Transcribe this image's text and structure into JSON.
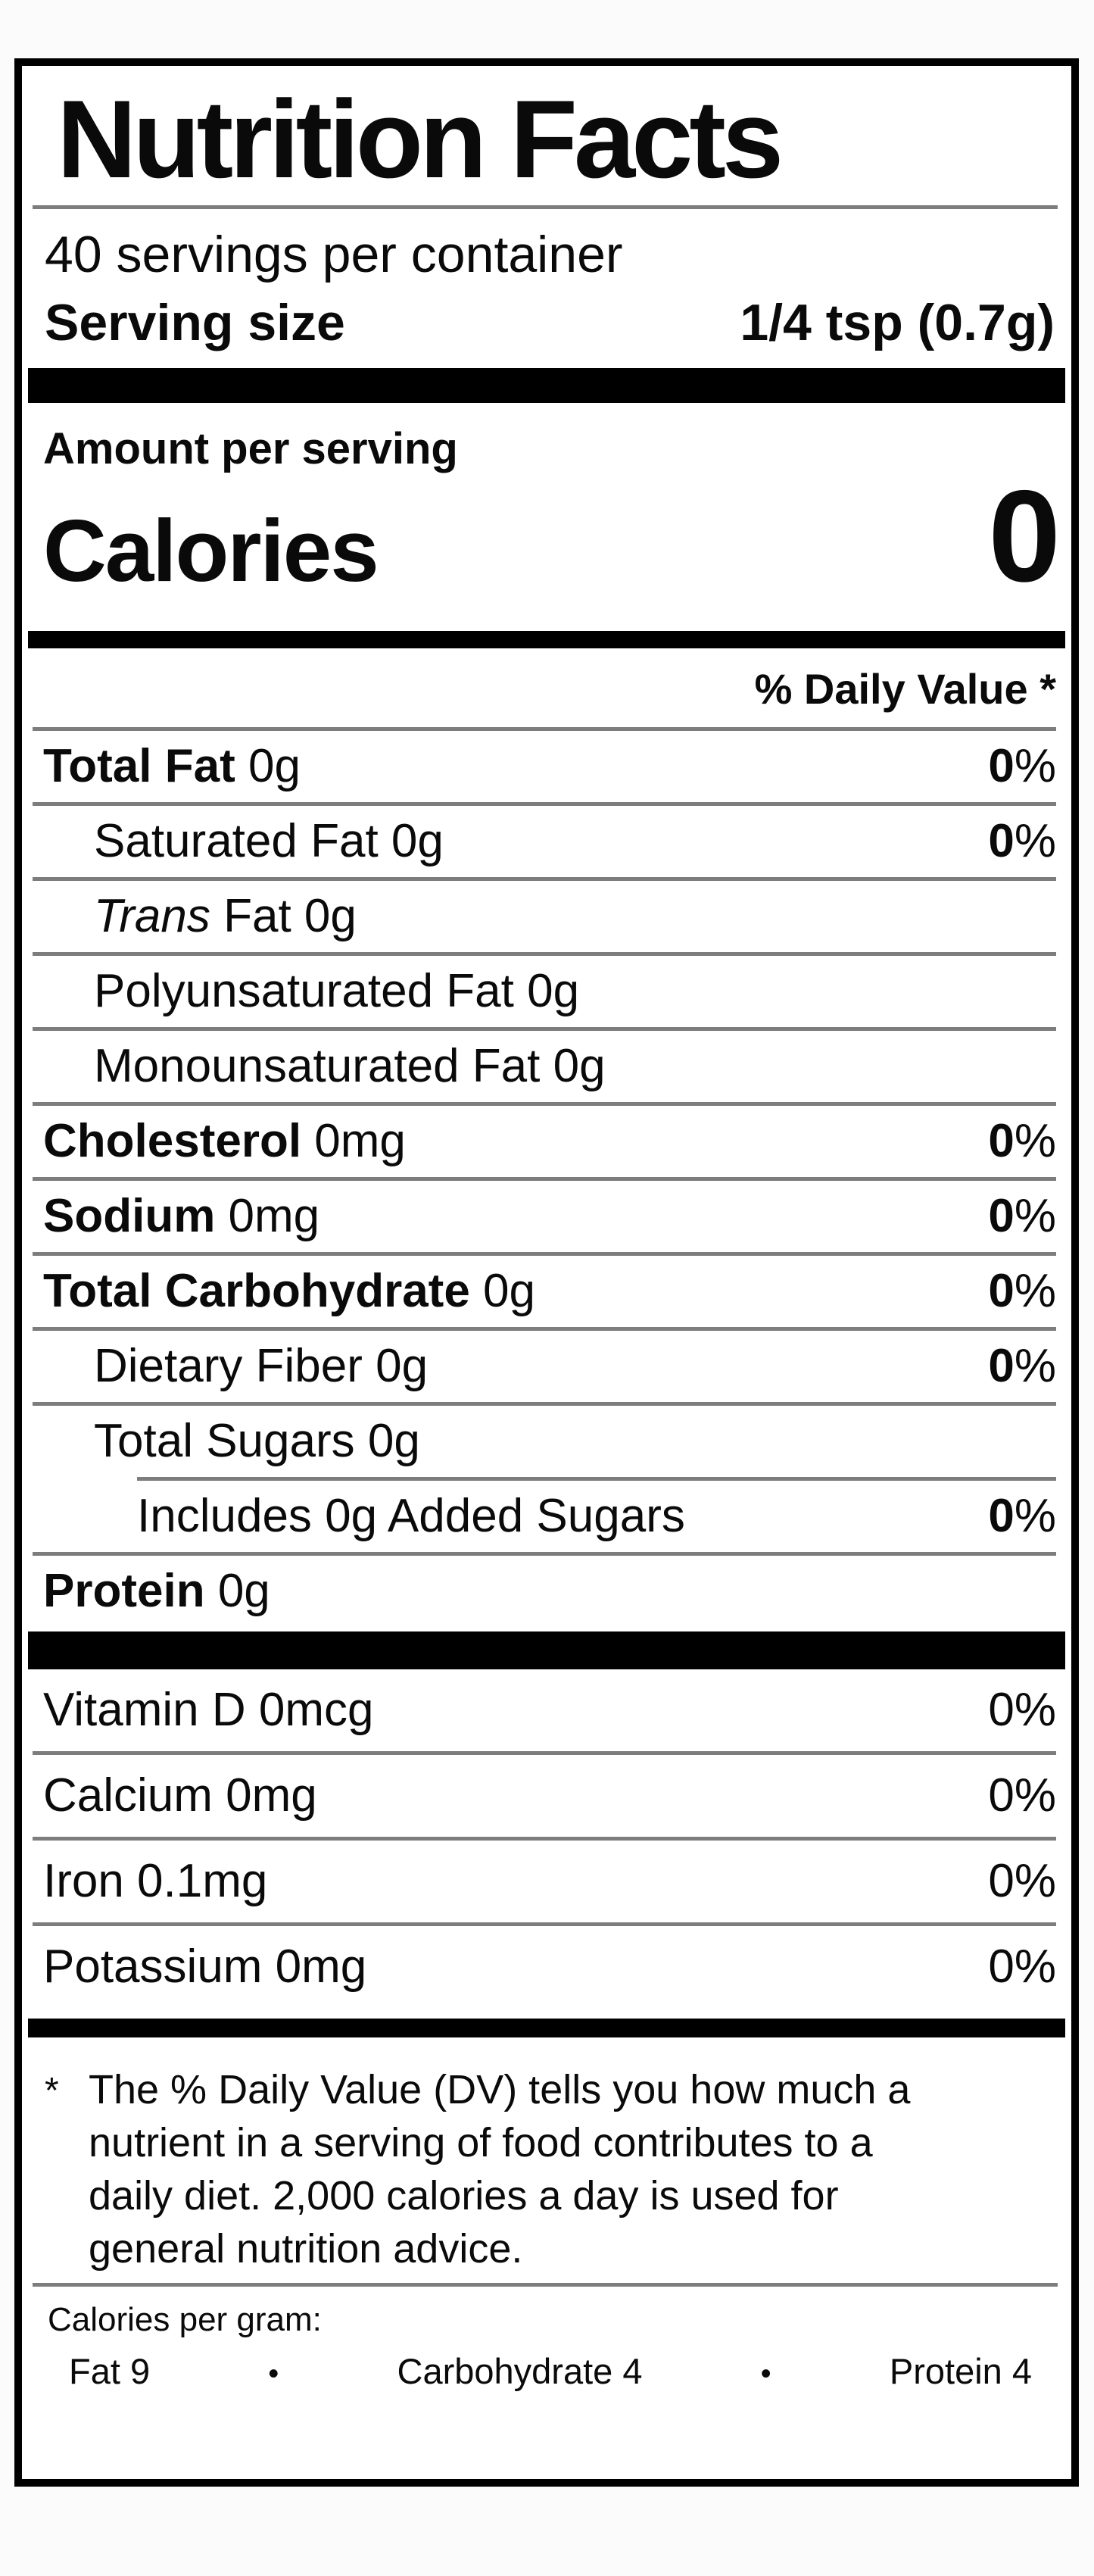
{
  "label": {
    "title": "Nutrition Facts",
    "servings_per_container": "40 servings per container",
    "serving_size_label": "Serving size",
    "serving_size_value": "1/4 tsp (0.7g)",
    "amount_per_serving": "Amount per serving",
    "calories_label": "Calories",
    "calories_value": "0",
    "daily_value_header": "% Daily Value *",
    "rows": [
      {
        "bold": "Total Fat",
        "text": " 0g",
        "pct_num": "0",
        "pct_sign": "%",
        "pct_bold": true,
        "indent": 0,
        "sep": "full"
      },
      {
        "text": "Saturated Fat 0g",
        "pct_num": "0",
        "pct_sign": "%",
        "pct_bold": true,
        "indent": 1,
        "sep": "full"
      },
      {
        "italic": "Trans",
        "text": " Fat 0g",
        "indent": 1,
        "sep": "full"
      },
      {
        "text": "Polyunsaturated Fat 0g",
        "indent": 1,
        "sep": "full"
      },
      {
        "text": "Monounsaturated Fat 0g",
        "indent": 1,
        "sep": "full"
      },
      {
        "bold": "Cholesterol",
        "text": " 0mg",
        "pct_num": "0",
        "pct_sign": "%",
        "pct_bold": true,
        "indent": 0,
        "sep": "full"
      },
      {
        "bold": "Sodium",
        "text": " 0mg",
        "pct_num": "0",
        "pct_sign": "%",
        "pct_bold": true,
        "indent": 0,
        "sep": "full"
      },
      {
        "bold": "Total Carbohydrate",
        "text": " 0g",
        "pct_num": "0",
        "pct_sign": "%",
        "pct_bold": true,
        "indent": 0,
        "sep": "full"
      },
      {
        "text": "Dietary Fiber 0g",
        "pct_num": "0",
        "pct_sign": "%",
        "pct_bold": true,
        "indent": 1,
        "sep": "full"
      },
      {
        "text": "Total Sugars 0g",
        "indent": 1,
        "sep": "full"
      },
      {
        "text": "Includes 0g Added Sugars",
        "pct_num": "0",
        "pct_sign": "%",
        "pct_bold": true,
        "indent": 2,
        "sep": "partial"
      },
      {
        "bold": "Protein",
        "text": " 0g",
        "indent": 0,
        "sep": "full"
      }
    ],
    "vitamins": [
      {
        "text": "Vitamin D 0mcg",
        "pct_num": "0",
        "pct_sign": "%",
        "pct_bold": false,
        "sep": "none"
      },
      {
        "text": "Calcium 0mg",
        "pct_num": "0",
        "pct_sign": "%",
        "pct_bold": false,
        "sep": "full"
      },
      {
        "text": "Iron 0.1mg",
        "pct_num": "0",
        "pct_sign": "%",
        "pct_bold": false,
        "sep": "full"
      },
      {
        "text": "Potassium 0mg",
        "pct_num": "0",
        "pct_sign": "%",
        "pct_bold": false,
        "sep": "full"
      }
    ],
    "footnote_marker": "*",
    "footnote": "The % Daily Value (DV) tells you how much a\nnutrient in a serving of food contributes to a\ndaily diet. 2,000 calories a day is used for\ngeneral nutrition advice.",
    "calories_per_gram": {
      "heading": "Calories per gram:",
      "items": [
        "Fat 9",
        "Carbohydrate 4",
        "Protein 4"
      ],
      "bullet": "•"
    },
    "colors": {
      "text": "#0a0a0a",
      "divider": "#7d7d7d",
      "bar": "#000000",
      "background": "#ffffff"
    }
  }
}
